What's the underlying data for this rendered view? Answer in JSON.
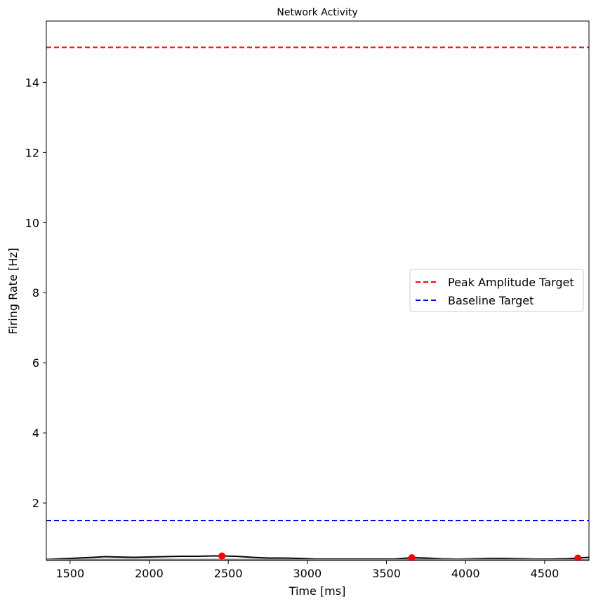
{
  "chart_data": {
    "type": "line",
    "title": "Network Activity",
    "xlabel": "Time [ms]",
    "ylabel": "Firing Rate [Hz]",
    "xlim": [
      1350,
      4780
    ],
    "ylim": [
      0.36,
      15.75
    ],
    "x_ticks": [
      1500,
      2000,
      2500,
      3000,
      3500,
      4000,
      4500
    ],
    "y_ticks": [
      2,
      4,
      6,
      8,
      10,
      12,
      14
    ],
    "grid": false,
    "legend_placement": "center-right",
    "series": [
      {
        "color": "#000000",
        "x": [
          1350,
          1450,
          1550,
          1650,
          1720,
          1800,
          1900,
          2000,
          2100,
          2200,
          2300,
          2400,
          2460,
          2550,
          2650,
          2750,
          2850,
          2950,
          3050,
          3150,
          3250,
          3350,
          3450,
          3550,
          3660,
          3750,
          3850,
          3950,
          4050,
          4150,
          4250,
          4350,
          4450,
          4550,
          4650,
          4710,
          4780
        ],
        "y": [
          0.39,
          0.41,
          0.43,
          0.45,
          0.47,
          0.46,
          0.45,
          0.46,
          0.47,
          0.48,
          0.48,
          0.49,
          0.49,
          0.48,
          0.45,
          0.43,
          0.43,
          0.42,
          0.4,
          0.4,
          0.4,
          0.4,
          0.4,
          0.4,
          0.44,
          0.43,
          0.41,
          0.4,
          0.41,
          0.42,
          0.42,
          0.41,
          0.4,
          0.4,
          0.41,
          0.43,
          0.45
        ]
      },
      {
        "color": "#808080",
        "x": [
          1350,
          1700,
          2100,
          2500,
          3000,
          3500,
          3800,
          4200,
          4600,
          4780
        ],
        "y": [
          0.38,
          0.39,
          0.39,
          0.39,
          0.38,
          0.38,
          0.39,
          0.39,
          0.38,
          0.38
        ]
      }
    ],
    "peaks": {
      "color": "#ff0000",
      "x": [
        2460,
        3660,
        4710
      ],
      "y": [
        0.49,
        0.44,
        0.43
      ]
    },
    "hlines": [
      {
        "name": "Peak Amplitude Target",
        "value": 15.0,
        "color": "#ff0000",
        "style": "dashed"
      },
      {
        "name": "Baseline Target",
        "value": 1.5,
        "color": "#0000ff",
        "style": "dashed"
      }
    ]
  }
}
